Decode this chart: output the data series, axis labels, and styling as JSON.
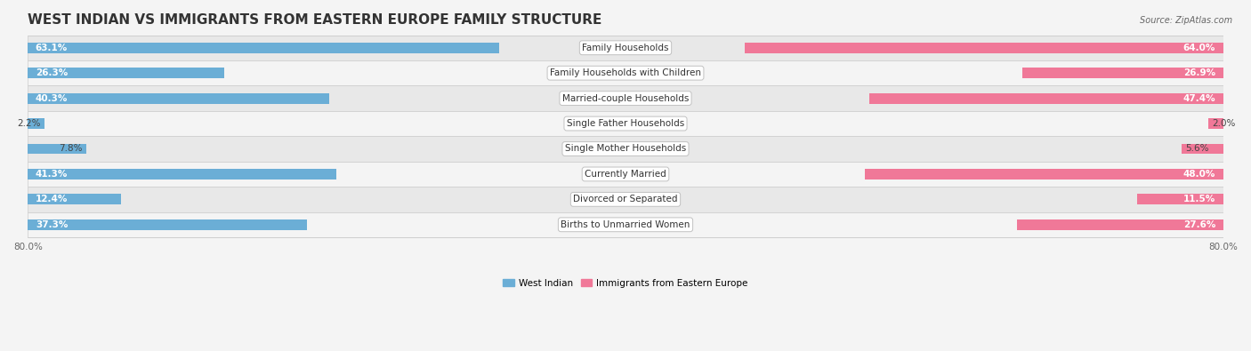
{
  "title": "WEST INDIAN VS IMMIGRANTS FROM EASTERN EUROPE FAMILY STRUCTURE",
  "source": "Source: ZipAtlas.com",
  "categories": [
    "Family Households",
    "Family Households with Children",
    "Married-couple Households",
    "Single Father Households",
    "Single Mother Households",
    "Currently Married",
    "Divorced or Separated",
    "Births to Unmarried Women"
  ],
  "west_indian": [
    63.1,
    26.3,
    40.3,
    2.2,
    7.8,
    41.3,
    12.4,
    37.3
  ],
  "eastern_europe": [
    64.0,
    26.9,
    47.4,
    2.0,
    5.6,
    48.0,
    11.5,
    27.6
  ],
  "color_west_indian": "#6baed6",
  "color_eastern_europe": "#f07898",
  "axis_max": 80.0,
  "background_color": "#f4f4f4",
  "row_colors": [
    "#e8e8e8",
    "#f4f4f4"
  ],
  "title_fontsize": 11,
  "bar_value_fontsize": 7.5,
  "cat_label_fontsize": 7.5,
  "axis_tick_fontsize": 7.5,
  "legend_label_west": "West Indian",
  "legend_label_east": "Immigrants from Eastern Europe",
  "white_text_threshold": 10
}
